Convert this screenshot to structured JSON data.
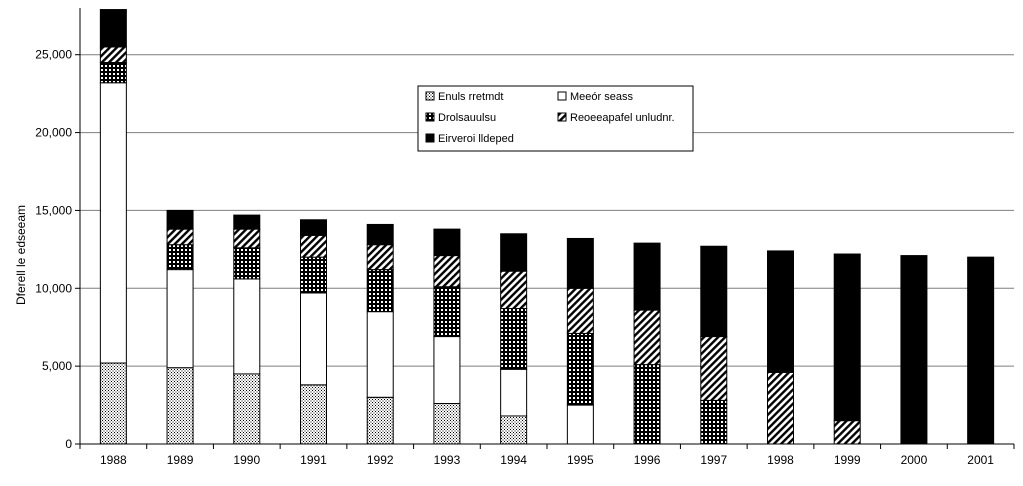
{
  "chart_data": {
    "type": "bar",
    "stacked": true,
    "ylabel": "Dferell le edseeam",
    "ylim": [
      0,
      28000
    ],
    "yticks": [
      0,
      5000,
      10000,
      15000,
      20000,
      25000
    ],
    "ytick_labels": [
      "0",
      "5,000",
      "10,000",
      "15,000",
      "20,000",
      "25,000"
    ],
    "grid": "horizontal",
    "legend_position": "top-center",
    "categories": [
      "1988",
      "1989",
      "1990",
      "1991",
      "1992",
      "1993",
      "1994",
      "1995",
      "1996",
      "1997",
      "1998",
      "1999",
      "2000",
      "2001"
    ],
    "series": [
      {
        "name": "Enuls rretmdt",
        "pattern": "dots",
        "values": [
          5200,
          4900,
          4500,
          3800,
          3000,
          2600,
          1800,
          0,
          0,
          0,
          0,
          0,
          0,
          0
        ]
      },
      {
        "name": "Meeór seass",
        "pattern": "white",
        "values": [
          18000,
          6300,
          6100,
          5900,
          5500,
          4300,
          3000,
          2500,
          0,
          0,
          0,
          0,
          0,
          0
        ]
      },
      {
        "name": "Drolsauulsu",
        "pattern": "grid",
        "values": [
          1300,
          1600,
          2000,
          2300,
          2700,
          3200,
          3900,
          4600,
          5100,
          2800,
          0,
          0,
          0,
          0
        ]
      },
      {
        "name": "Reoeeapafel unludnr.",
        "pattern": "hatch",
        "values": [
          1000,
          1000,
          1200,
          1400,
          1600,
          2000,
          2400,
          2900,
          3500,
          4100,
          4600,
          1500,
          0,
          0
        ]
      },
      {
        "name": "Eirveroi lldeped",
        "pattern": "black",
        "values": [
          2400,
          1200,
          900,
          1000,
          1300,
          1700,
          2400,
          3200,
          4300,
          5800,
          7800,
          10700,
          12100,
          12000
        ]
      }
    ],
    "legend_order": [
      "Enuls rretmdt",
      "Meeór seass",
      "Drolsauulsu",
      "Reoeeapafel unludnr.",
      "Eirveroi lldeped"
    ]
  }
}
